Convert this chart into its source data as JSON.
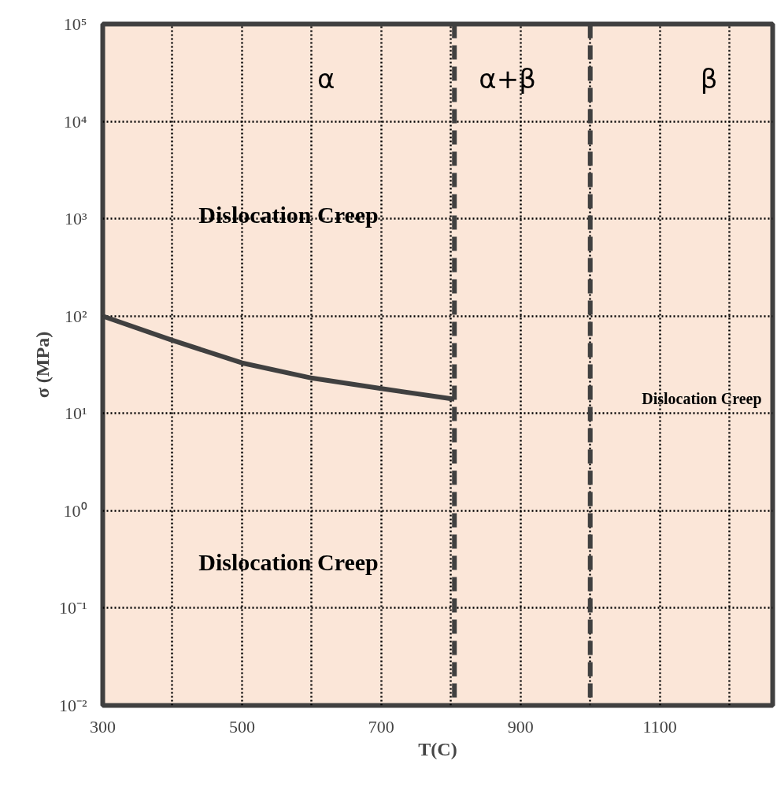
{
  "chart_data": {
    "type": "line",
    "xlabel": "T(C)",
    "ylabel": "σ (MPa)",
    "log": "y",
    "x": [
      300,
      398,
      500,
      601,
      700,
      805
    ],
    "series": [
      {
        "color": "#404040",
        "values": [
          100,
          57,
          33,
          23,
          18,
          14
        ]
      }
    ],
    "xlim": [
      300,
      1262
    ],
    "ylim": [
      0.01,
      100000
    ],
    "xticks": [
      300,
      {
        "value": 400,
        "label": null
      },
      500,
      {
        "value": 600,
        "label": null
      },
      700,
      {
        "value": 800,
        "label": null
      },
      900,
      {
        "value": 1000,
        "label": null
      },
      1100,
      {
        "value": 1200,
        "label": null
      }
    ],
    "yticks": [
      {
        "value": 0.01,
        "label": "10⁻²"
      },
      {
        "value": 0.1,
        "label": "10⁻¹"
      },
      {
        "value": 1,
        "label": "10⁰"
      },
      {
        "value": 10,
        "label": "10¹"
      },
      {
        "value": 100,
        "label": "10²"
      },
      {
        "value": 1000,
        "label": "10³"
      },
      {
        "value": 10000,
        "label": "10⁴"
      },
      {
        "value": 100000,
        "label": "10⁵"
      }
    ],
    "grid": true,
    "marker": "none",
    "line_style": "solid",
    "ref_lines": [
      {
        "axis": "x",
        "value": 805,
        "color": "#404040",
        "line_style": "dashed"
      },
      {
        "axis": "x",
        "value": 1000,
        "color": "#404040",
        "line_style": "dashed"
      }
    ],
    "annotations": [
      "α",
      "α+β",
      "β",
      "Dislocation Creep",
      "Dislocation Creep",
      "Dislocation Creep"
    ]
  }
}
